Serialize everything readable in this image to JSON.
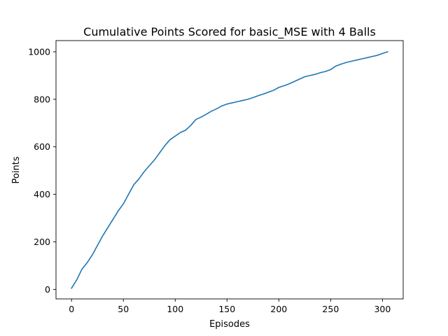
{
  "chart_data": {
    "type": "line",
    "title": "Cumulative Points Scored for basic_MSE with 4 Balls",
    "xlabel": "Episodes",
    "ylabel": "Points",
    "xlim": [
      -15,
      320
    ],
    "ylim": [
      -40,
      1047
    ],
    "grid": false,
    "xticks": [
      0,
      50,
      100,
      150,
      200,
      250,
      300
    ],
    "yticks": [
      0,
      200,
      400,
      600,
      800,
      1000
    ],
    "xtick_labels": [
      "0",
      "50",
      "100",
      "150",
      "200",
      "250",
      "300"
    ],
    "ytick_labels": [
      "0",
      "200",
      "400",
      "600",
      "800",
      "1000"
    ],
    "series": [
      {
        "color": "#1f77b4",
        "x": [
          0,
          5,
          10,
          15,
          20,
          25,
          30,
          35,
          40,
          45,
          50,
          55,
          60,
          65,
          70,
          75,
          80,
          85,
          90,
          95,
          100,
          105,
          110,
          115,
          120,
          125,
          130,
          135,
          140,
          145,
          150,
          155,
          160,
          165,
          170,
          175,
          180,
          185,
          190,
          195,
          200,
          205,
          210,
          215,
          220,
          225,
          230,
          235,
          240,
          245,
          250,
          255,
          260,
          265,
          270,
          275,
          280,
          285,
          290,
          295,
          300,
          305
        ],
        "y": [
          5,
          40,
          85,
          112,
          145,
          185,
          225,
          260,
          295,
          330,
          360,
          400,
          440,
          465,
          495,
          520,
          545,
          575,
          605,
          630,
          645,
          660,
          670,
          690,
          715,
          725,
          737,
          750,
          760,
          772,
          780,
          785,
          790,
          795,
          800,
          807,
          815,
          822,
          830,
          838,
          850,
          857,
          865,
          875,
          885,
          895,
          900,
          905,
          912,
          917,
          925,
          940,
          948,
          955,
          960,
          965,
          970,
          975,
          980,
          985,
          993,
          1000
        ]
      }
    ]
  }
}
